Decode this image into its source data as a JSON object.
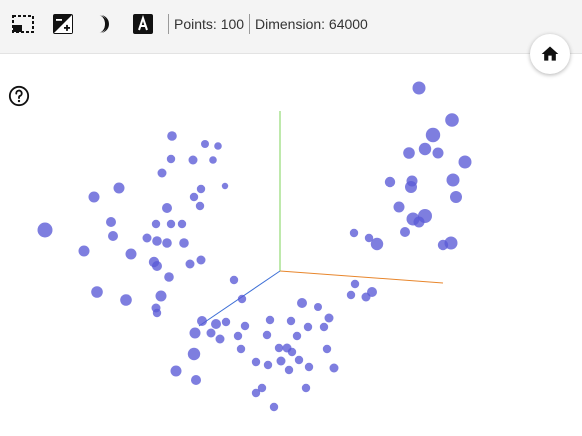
{
  "toolbar": {
    "icons": [
      "select-region-icon",
      "exposure-icon",
      "dark-mode-icon",
      "text-label-icon"
    ],
    "stats": {
      "points_label": "Points: 100",
      "dimension_label": "Dimension: 64000"
    }
  },
  "home_icon": "home-icon",
  "help_icon": "help-icon",
  "colors": {
    "point": "#5a5ad6",
    "axis_x": "#e8862c",
    "axis_y": "#7ed35a",
    "axis_z": "#3d6fd6",
    "toolbar_bg": "#f4f4f4"
  },
  "scatter3d": {
    "type": "scatter",
    "axes": [
      "x",
      "y",
      "z"
    ]
  }
}
